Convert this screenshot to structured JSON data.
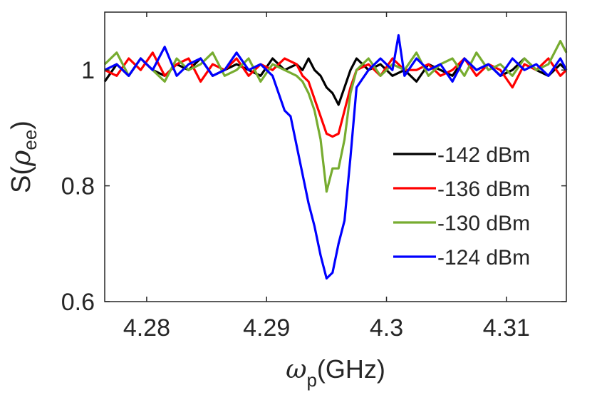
{
  "chart_data": {
    "type": "line",
    "title": "",
    "xlabel": {
      "symbol": "ω",
      "subscript": "p",
      "unit": "(GHz)"
    },
    "ylabel": {
      "prefix": "S(",
      "symbol": "ρ",
      "subscript": "ee",
      "suffix": ")"
    },
    "xlim": [
      4.2765,
      4.315
    ],
    "ylim": [
      0.6,
      1.1
    ],
    "xticks": [
      4.28,
      4.29,
      4.3,
      4.31
    ],
    "xtick_labels": [
      "4.28",
      "4.29",
      "4.3",
      "4.31"
    ],
    "yticks": [
      0.6,
      0.8,
      1.0
    ],
    "ytick_labels": [
      "0.6",
      "0.8",
      "1"
    ],
    "grid": false,
    "legend_position": "right-middle",
    "series": [
      {
        "name": "-142 dBm",
        "color": "#000000",
        "x": [
          4.2765,
          4.2775,
          4.2785,
          4.2795,
          4.2805,
          4.2815,
          4.2825,
          4.2835,
          4.2845,
          4.2855,
          4.2865,
          4.2875,
          4.2885,
          4.2895,
          4.2905,
          4.2915,
          4.2925,
          4.293,
          4.2935,
          4.294,
          4.2945,
          4.295,
          4.2955,
          4.296,
          4.2965,
          4.297,
          4.2975,
          4.2985,
          4.2995,
          4.3005,
          4.3015,
          4.3025,
          4.3035,
          4.3045,
          4.3055,
          4.3065,
          4.3075,
          4.3085,
          4.3095,
          4.3105,
          4.3115,
          4.3125,
          4.3135,
          4.3145,
          4.315
        ],
        "y": [
          0.98,
          1.01,
          0.99,
          1.02,
          1.0,
          0.99,
          1.01,
          1.0,
          1.02,
          0.99,
          1.0,
          1.01,
          1.0,
          0.99,
          1.02,
          1.0,
          1.01,
          1.0,
          1.02,
          1.0,
          0.99,
          0.97,
          0.96,
          0.94,
          0.97,
          1.0,
          1.02,
          1.0,
          1.01,
          0.99,
          1.0,
          0.98,
          1.01,
          1.0,
          0.99,
          1.02,
          1.0,
          1.01,
          0.99,
          1.0,
          1.02,
          1.0,
          0.99,
          1.01,
          1.0
        ]
      },
      {
        "name": "-136 dBm",
        "color": "#ff0000",
        "x": [
          4.2765,
          4.2775,
          4.2785,
          4.2795,
          4.2805,
          4.2815,
          4.2825,
          4.2835,
          4.2845,
          4.2855,
          4.2865,
          4.2875,
          4.2885,
          4.2895,
          4.2905,
          4.2915,
          4.2925,
          4.293,
          4.2935,
          4.294,
          4.2945,
          4.295,
          4.2955,
          4.296,
          4.2965,
          4.297,
          4.2975,
          4.2985,
          4.2995,
          4.3005,
          4.3015,
          4.3025,
          4.3035,
          4.3045,
          4.3055,
          4.3065,
          4.3075,
          4.3085,
          4.3095,
          4.3105,
          4.3115,
          4.3125,
          4.3135,
          4.3145,
          4.315
        ],
        "y": [
          1.0,
          0.99,
          1.02,
          1.0,
          1.03,
          0.99,
          1.01,
          1.02,
          0.98,
          1.01,
          1.0,
          1.02,
          0.99,
          1.01,
          1.0,
          1.02,
          1.01,
          0.99,
          0.98,
          0.95,
          0.92,
          0.89,
          0.885,
          0.89,
          0.93,
          0.97,
          1.0,
          1.01,
          0.99,
          1.02,
          1.0,
          1.0,
          1.01,
          0.99,
          1.0,
          1.02,
          0.99,
          1.01,
          1.0,
          0.97,
          1.01,
          1.0,
          1.02,
          0.99,
          1.0
        ]
      },
      {
        "name": "-130 dBm",
        "color": "#77ac30",
        "x": [
          4.2765,
          4.2775,
          4.2785,
          4.2795,
          4.2805,
          4.2815,
          4.2825,
          4.2835,
          4.2845,
          4.2855,
          4.2865,
          4.2875,
          4.2885,
          4.2895,
          4.2905,
          4.2915,
          4.2925,
          4.293,
          4.2935,
          4.294,
          4.2945,
          4.295,
          4.2955,
          4.296,
          4.2965,
          4.297,
          4.2975,
          4.2985,
          4.2995,
          4.3005,
          4.3015,
          4.3025,
          4.3035,
          4.3045,
          4.3055,
          4.3065,
          4.3075,
          4.3085,
          4.3095,
          4.3105,
          4.3115,
          4.3125,
          4.3135,
          4.3145,
          4.315
        ],
        "y": [
          1.01,
          1.03,
          0.99,
          1.02,
          1.0,
          0.98,
          1.02,
          1.0,
          1.01,
          1.03,
          0.99,
          1.0,
          1.02,
          0.98,
          1.01,
          1.0,
          0.99,
          0.98,
          0.96,
          0.93,
          0.88,
          0.79,
          0.83,
          0.83,
          0.88,
          0.96,
          1.0,
          1.02,
          0.99,
          1.01,
          1.0,
          1.03,
          0.99,
          1.01,
          1.02,
          0.99,
          1.03,
          1.0,
          1.01,
          0.99,
          1.02,
          1.0,
          1.01,
          1.05,
          1.03
        ]
      },
      {
        "name": "-124 dBm",
        "color": "#0000ff",
        "x": [
          4.2765,
          4.2775,
          4.2785,
          4.2795,
          4.2805,
          4.2815,
          4.2825,
          4.2835,
          4.2845,
          4.2855,
          4.2865,
          4.2875,
          4.2885,
          4.2895,
          4.2905,
          4.2915,
          4.292,
          4.2925,
          4.293,
          4.2935,
          4.294,
          4.2945,
          4.295,
          4.2955,
          4.296,
          4.2965,
          4.297,
          4.2975,
          4.2985,
          4.2995,
          4.3005,
          4.301,
          4.3015,
          4.3025,
          4.3035,
          4.3045,
          4.3055,
          4.3065,
          4.3075,
          4.3085,
          4.3095,
          4.3105,
          4.3115,
          4.3125,
          4.3135,
          4.3145,
          4.315
        ],
        "y": [
          1.0,
          1.01,
          0.99,
          1.02,
          1.0,
          1.04,
          0.99,
          1.01,
          1.02,
          0.99,
          1.0,
          1.03,
          1.0,
          1.01,
          0.99,
          0.93,
          0.92,
          0.87,
          0.82,
          0.77,
          0.73,
          0.68,
          0.64,
          0.65,
          0.7,
          0.74,
          0.85,
          0.97,
          1.0,
          1.02,
          1.0,
          1.06,
          0.99,
          1.02,
          1.0,
          1.01,
          0.98,
          1.02,
          1.0,
          1.01,
          0.99,
          1.02,
          1.0,
          1.01,
          0.99,
          1.02,
          1.0
        ]
      }
    ]
  }
}
